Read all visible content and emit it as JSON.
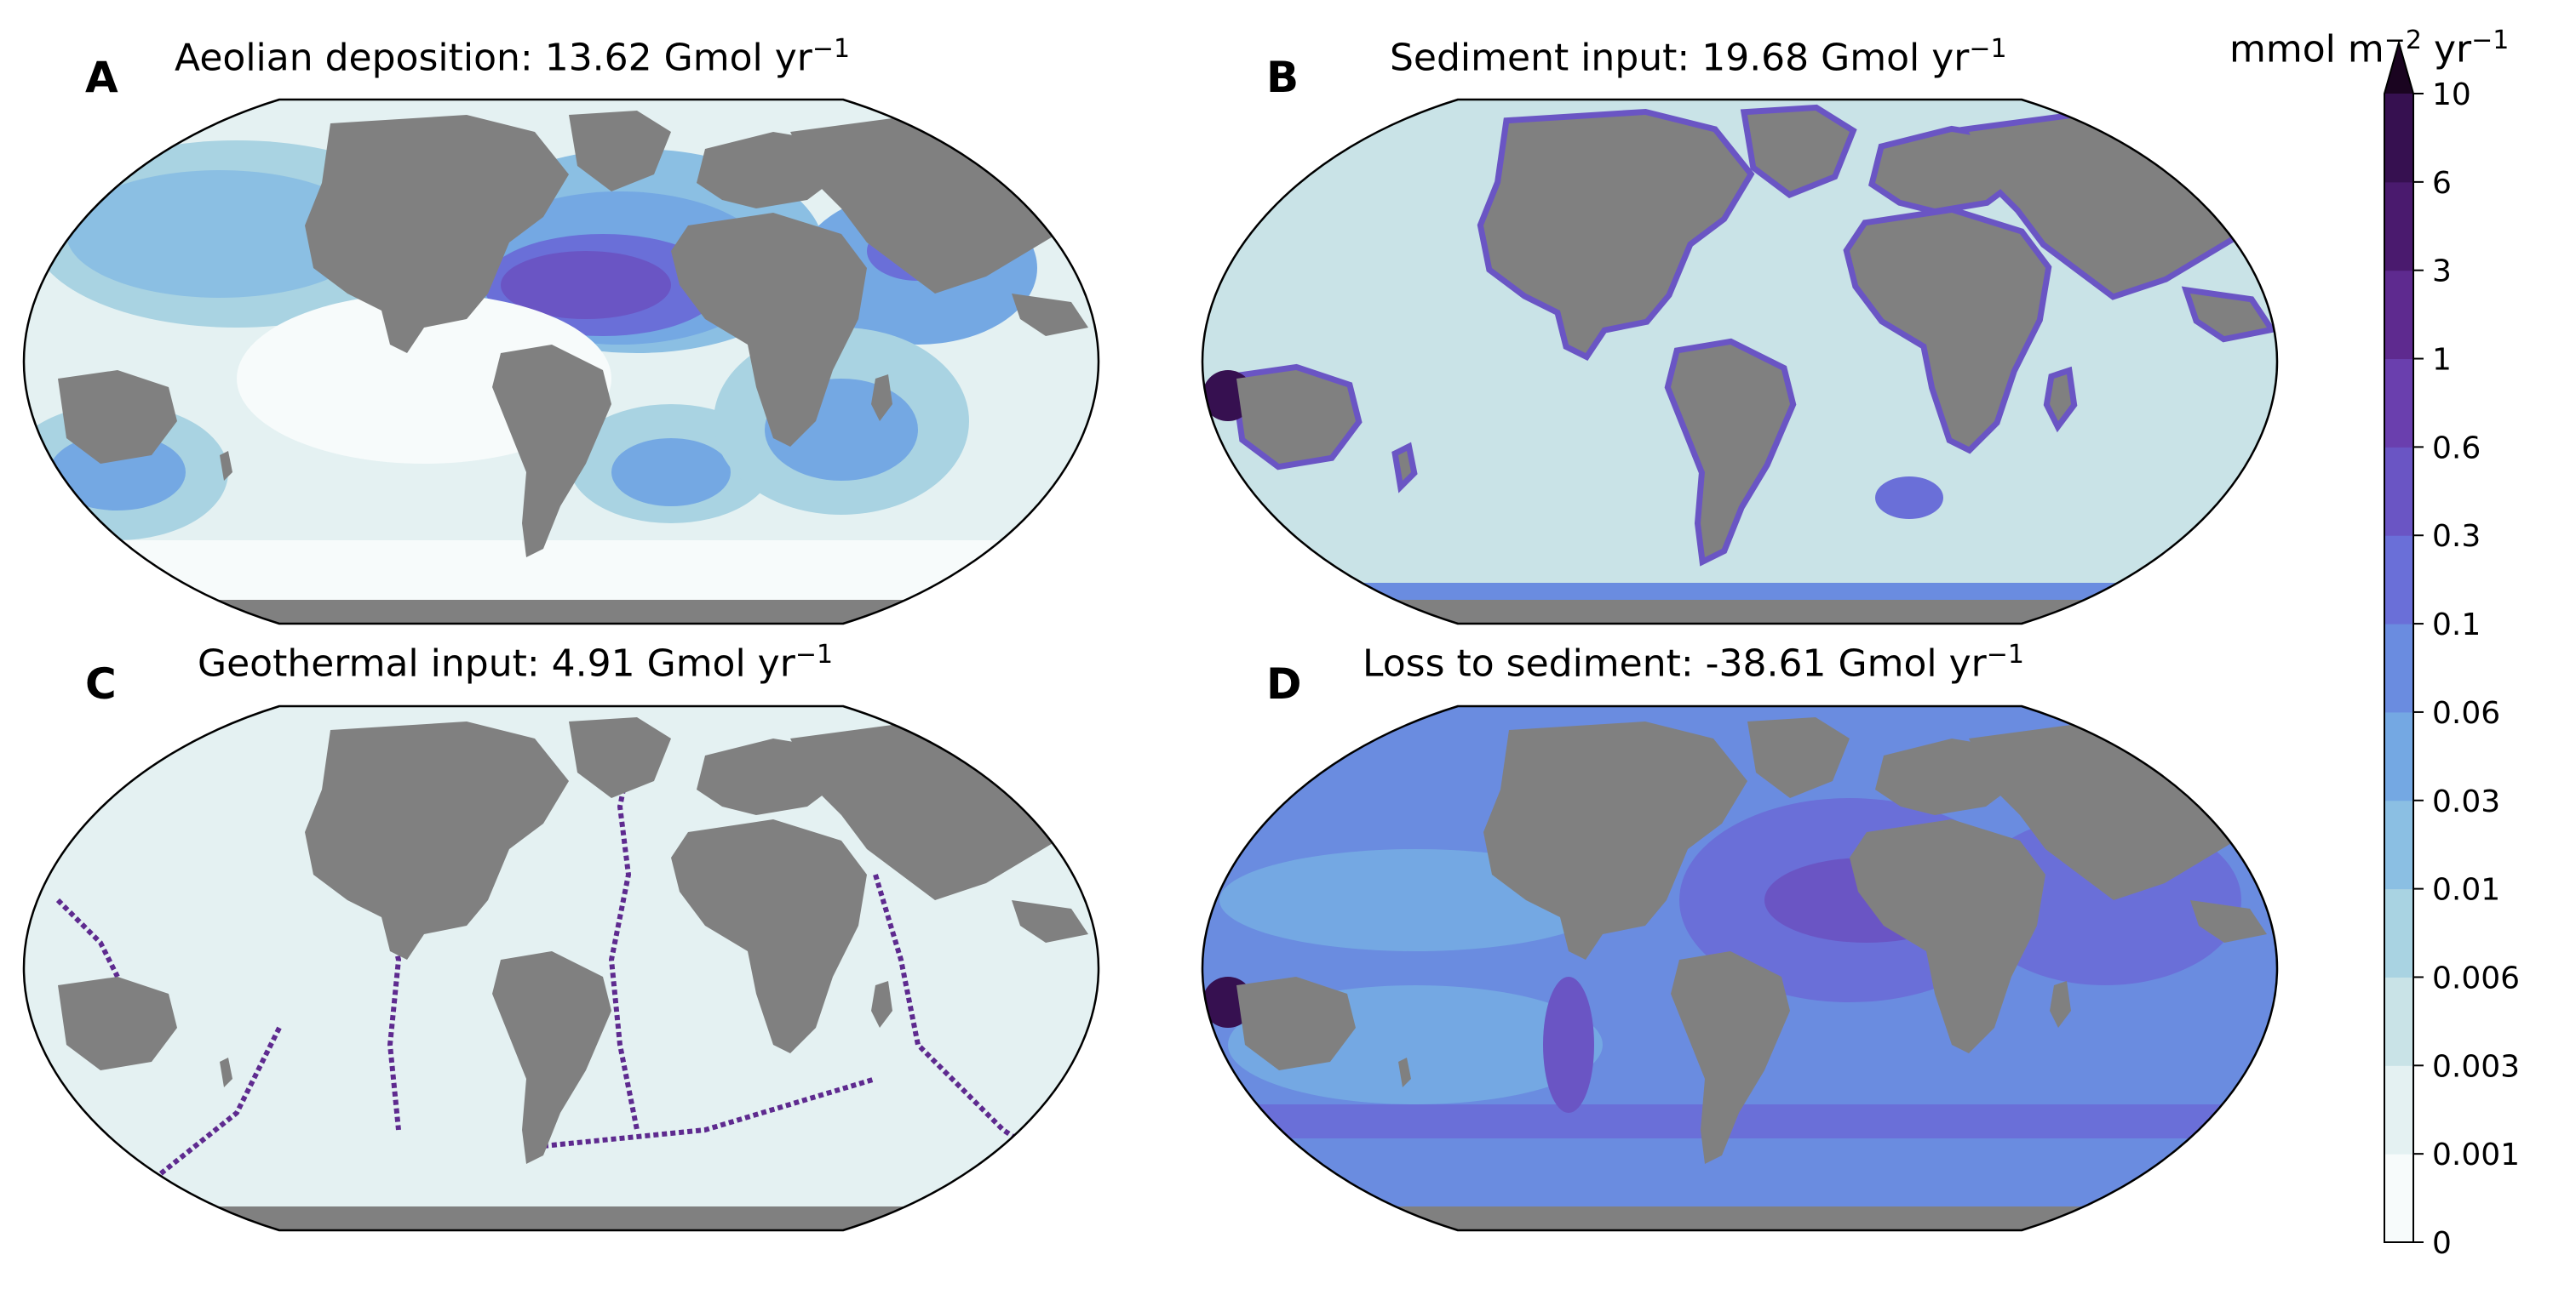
{
  "panels": [
    {
      "letter": "A",
      "title": "Aeolian deposition: 13.62 Gmol yr",
      "exp": "−1",
      "pattern": "aeolian"
    },
    {
      "letter": "B",
      "title": "Sediment input: 19.68 Gmol yr",
      "exp": "−1",
      "pattern": "sediment"
    },
    {
      "letter": "C",
      "title": "Geothermal input: 4.91 Gmol yr",
      "exp": "−1",
      "pattern": "geothermal"
    },
    {
      "letter": "D",
      "title": "Loss to sediment: -38.61 Gmol yr",
      "exp": "−1",
      "pattern": "loss"
    }
  ],
  "colorbar": {
    "unit_prefix": "mmol m",
    "unit_exp1": "−2",
    "unit_mid": " yr",
    "unit_exp2": "−1",
    "ticks": [
      "0",
      "0.001",
      "0.003",
      "0.006",
      "0.01",
      "0.03",
      "0.06",
      "0.1",
      "0.3",
      "0.6",
      "1",
      "3",
      "6",
      "10"
    ],
    "colors": [
      "#f7fbfb",
      "#e4f1f2",
      "#c9e3e7",
      "#a9d3e2",
      "#8bbfe3",
      "#74a8e3",
      "#6a8ce0",
      "#6a6fd8",
      "#6a55c4",
      "#6a3fae",
      "#5e2a8f",
      "#4a1a6e",
      "#361050",
      "#24082f"
    ],
    "extend_color": "#1a0420"
  },
  "land_color": "#808080"
}
